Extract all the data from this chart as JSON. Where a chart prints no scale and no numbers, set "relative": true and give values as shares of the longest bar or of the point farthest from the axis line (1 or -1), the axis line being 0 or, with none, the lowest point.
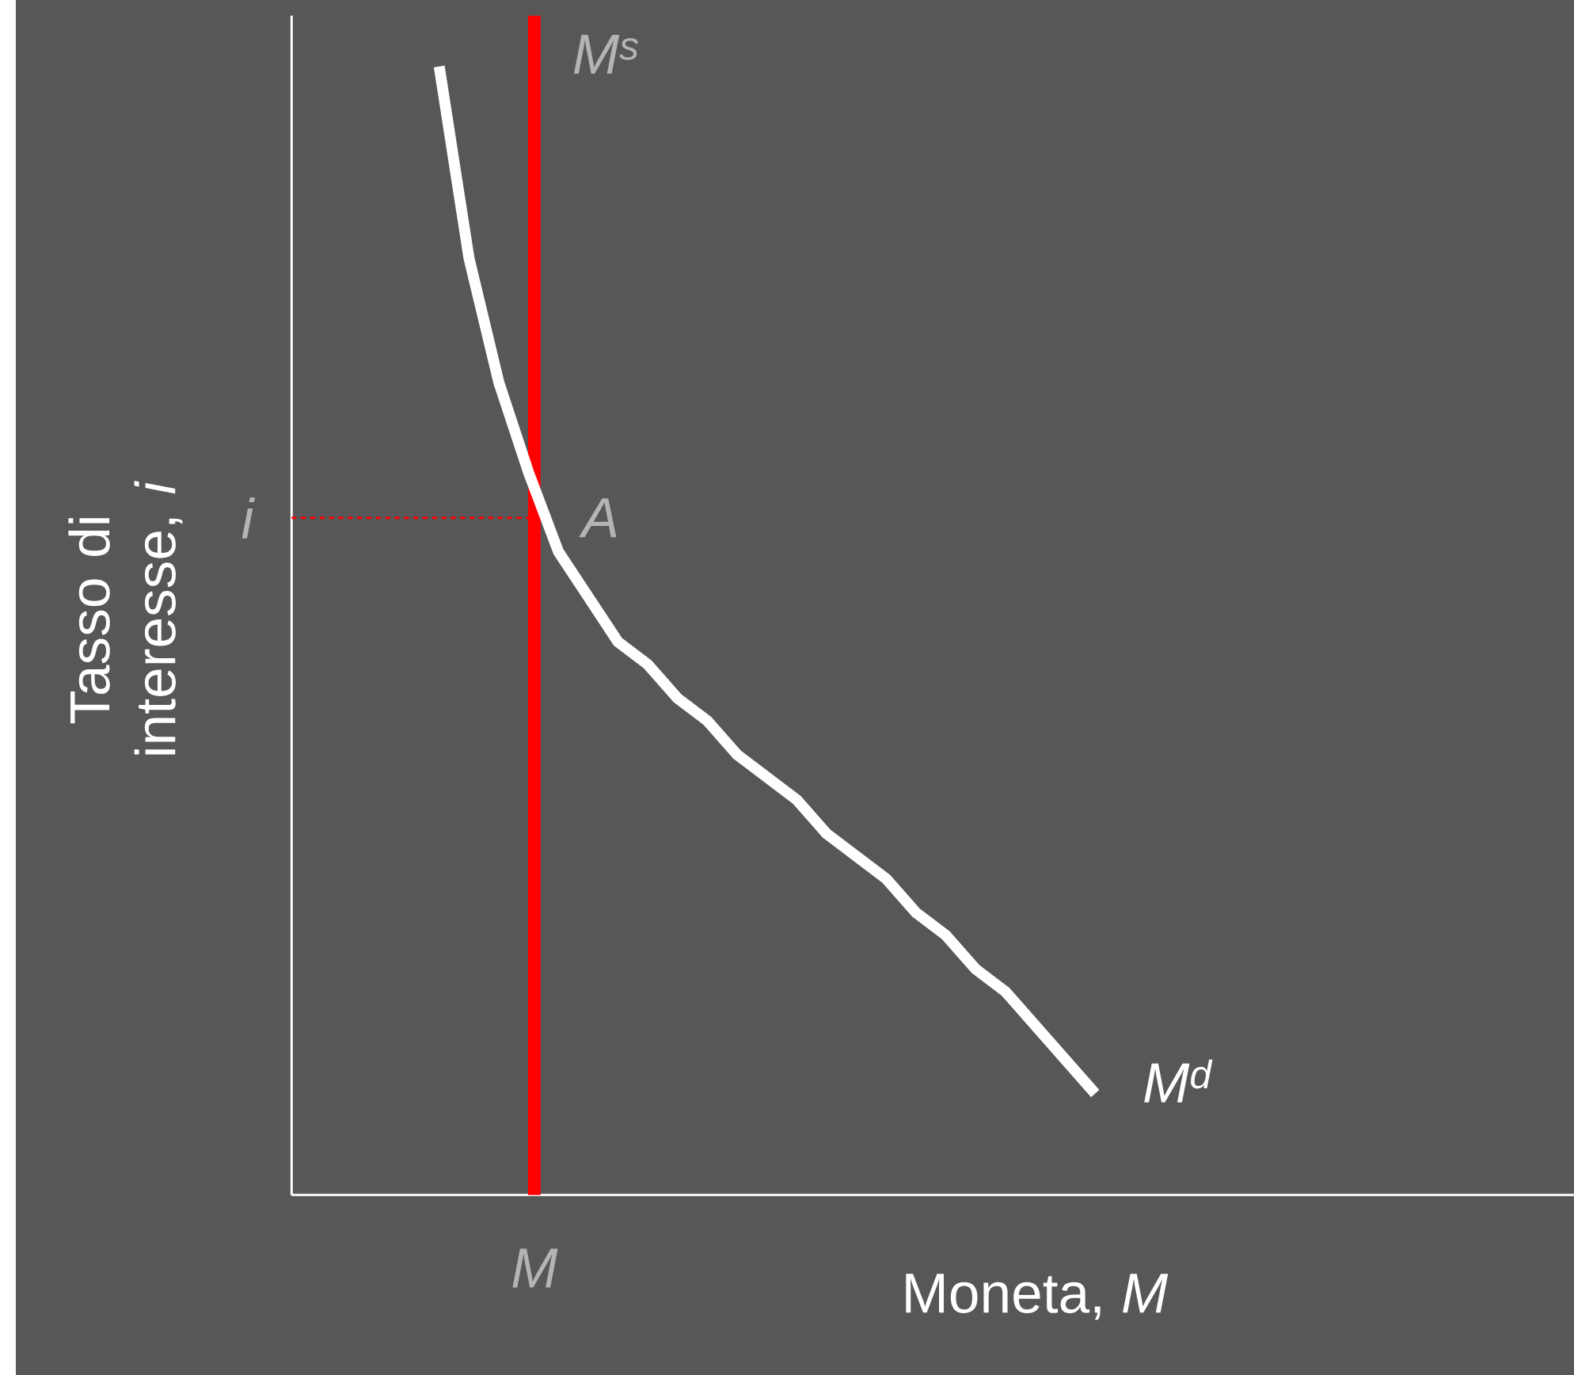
{
  "chart_data": {
    "type": "line",
    "relative": true,
    "xlabel": "Moneta, *M*",
    "ylabel": "Tasso di interesse, *i*",
    "line_style": "solid",
    "categories": [
      null,
      null,
      null,
      null,
      null,
      null,
      null,
      null,
      null,
      null,
      null,
      null,
      null,
      null,
      null,
      null,
      null,
      null,
      null,
      null,
      null,
      null,
      null
    ],
    "series": [
      {
        "name": "M$^{d}$",
        "color": "#ffffff",
        "values": [
          1.0,
          0.83,
          0.72,
          0.64,
          0.57,
          0.53,
          0.49,
          0.47,
          0.44,
          0.42,
          0.39,
          0.37,
          0.35,
          0.32,
          0.3,
          0.28,
          0.25,
          0.23,
          0.2,
          0.18,
          0.15,
          0.12,
          0.09
        ]
      }
    ],
    "ref_lines": [
      {
        "axis": "x",
        "label": "M$^{s}$",
        "color": "#ff0000",
        "line_style": "solid"
      },
      {
        "axis": "y",
        "value": 0.6,
        "label": "i",
        "color": "#ff0000",
        "line_style": "dashed"
      }
    ],
    "annotations": [
      "A",
      "M"
    ]
  }
}
